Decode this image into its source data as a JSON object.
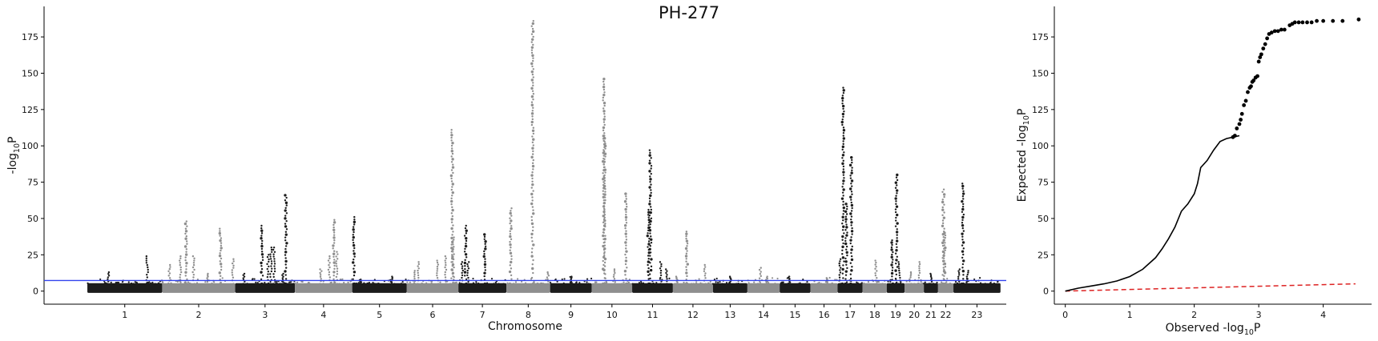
{
  "figure": {
    "title": "PH-277"
  },
  "chart_data": [
    {
      "type": "scatter",
      "name": "manhattan",
      "title": "PH-277",
      "xlabel": "Chromosome",
      "ylabel_main": "-log",
      "ylabel_sub": "10",
      "ylabel_tail": "P",
      "ylim": [
        -9,
        196
      ],
      "yticks": [
        0,
        25,
        50,
        75,
        100,
        125,
        150,
        175
      ],
      "threshold": 7.3,
      "threshold_color": "#3344ee",
      "colors": {
        "odd": "#1c1c1c",
        "even": "#8f8f8f"
      },
      "chromosomes": [
        {
          "label": "1",
          "length": 248,
          "top": 24
        },
        {
          "label": "2",
          "length": 242,
          "top": 47
        },
        {
          "label": "3",
          "length": 198,
          "top": 66
        },
        {
          "label": "4",
          "length": 190,
          "top": 49
        },
        {
          "label": "5",
          "length": 181,
          "top": 51
        },
        {
          "label": "6",
          "length": 171,
          "top": 111
        },
        {
          "label": "7",
          "length": 159,
          "top": 45
        },
        {
          "label": "8",
          "length": 145,
          "top": 186
        },
        {
          "label": "9",
          "length": 138,
          "top": 13
        },
        {
          "label": "10",
          "length": 134,
          "top": 146
        },
        {
          "label": "11",
          "length": 135,
          "top": 97
        },
        {
          "label": "12",
          "length": 133,
          "top": 41
        },
        {
          "label": "13",
          "length": 114,
          "top": 10
        },
        {
          "label": "14",
          "length": 107,
          "top": 16
        },
        {
          "label": "15",
          "length": 102,
          "top": 10
        },
        {
          "label": "16",
          "length": 90,
          "top": 9
        },
        {
          "label": "17",
          "length": 83,
          "top": 140
        },
        {
          "label": "18",
          "length": 80,
          "top": 21
        },
        {
          "label": "19",
          "length": 59,
          "top": 80
        },
        {
          "label": "20",
          "length": 64,
          "top": 20
        },
        {
          "label": "21",
          "length": 47,
          "top": 12
        },
        {
          "label": "22",
          "length": 51,
          "top": 70
        },
        {
          "label": "23",
          "length": 156,
          "top": 74
        }
      ],
      "peaks": [
        {
          "chr": "1",
          "pos": 0.28,
          "top": 13
        },
        {
          "chr": "1",
          "pos": 0.8,
          "top": 24
        },
        {
          "chr": "2",
          "pos": 0.1,
          "top": 18
        },
        {
          "chr": "2",
          "pos": 0.25,
          "top": 24
        },
        {
          "chr": "2",
          "pos": 0.33,
          "top": 48
        },
        {
          "chr": "2",
          "pos": 0.43,
          "top": 24
        },
        {
          "chr": "2",
          "pos": 0.62,
          "top": 12
        },
        {
          "chr": "2",
          "pos": 0.8,
          "top": 43
        },
        {
          "chr": "2",
          "pos": 0.97,
          "top": 22
        },
        {
          "chr": "3",
          "pos": 0.15,
          "top": 12
        },
        {
          "chr": "3",
          "pos": 0.45,
          "top": 45
        },
        {
          "chr": "3",
          "pos": 0.55,
          "top": 25
        },
        {
          "chr": "3",
          "pos": 0.6,
          "top": 30
        },
        {
          "chr": "3",
          "pos": 0.65,
          "top": 30
        },
        {
          "chr": "3",
          "pos": 0.8,
          "top": 12
        },
        {
          "chr": "3",
          "pos": 0.85,
          "top": 66
        },
        {
          "chr": "4",
          "pos": 0.45,
          "top": 15
        },
        {
          "chr": "4",
          "pos": 0.6,
          "top": 24
        },
        {
          "chr": "4",
          "pos": 0.68,
          "top": 49
        },
        {
          "chr": "4",
          "pos": 0.73,
          "top": 27
        },
        {
          "chr": "5",
          "pos": 0.03,
          "top": 51
        },
        {
          "chr": "5",
          "pos": 0.15,
          "top": 8
        },
        {
          "chr": "5",
          "pos": 0.72,
          "top": 10
        },
        {
          "chr": "6",
          "pos": 0.15,
          "top": 14
        },
        {
          "chr": "6",
          "pos": 0.22,
          "top": 20
        },
        {
          "chr": "6",
          "pos": 0.6,
          "top": 21
        },
        {
          "chr": "6",
          "pos": 0.75,
          "top": 24
        },
        {
          "chr": "6",
          "pos": 0.88,
          "top": 111
        },
        {
          "chr": "6",
          "pos": 0.9,
          "top": 37
        },
        {
          "chr": "7",
          "pos": 0.08,
          "top": 20
        },
        {
          "chr": "7",
          "pos": 0.15,
          "top": 45
        },
        {
          "chr": "7",
          "pos": 0.2,
          "top": 20
        },
        {
          "chr": "7",
          "pos": 0.55,
          "top": 39
        },
        {
          "chr": "8",
          "pos": 0.1,
          "top": 57
        },
        {
          "chr": "8",
          "pos": 0.6,
          "top": 186
        },
        {
          "chr": "8",
          "pos": 0.95,
          "top": 13
        },
        {
          "chr": "9",
          "pos": 0.5,
          "top": 10
        },
        {
          "chr": "10",
          "pos": 0.3,
          "top": 146
        },
        {
          "chr": "10",
          "pos": 0.32,
          "top": 107
        },
        {
          "chr": "10",
          "pos": 0.55,
          "top": 15
        },
        {
          "chr": "10",
          "pos": 0.85,
          "top": 67
        },
        {
          "chr": "11",
          "pos": 0.45,
          "top": 97
        },
        {
          "chr": "11",
          "pos": 0.4,
          "top": 56
        },
        {
          "chr": "11",
          "pos": 0.7,
          "top": 20
        },
        {
          "chr": "11",
          "pos": 0.85,
          "top": 15
        },
        {
          "chr": "12",
          "pos": 0.1,
          "top": 10
        },
        {
          "chr": "12",
          "pos": 0.35,
          "top": 41
        },
        {
          "chr": "12",
          "pos": 0.8,
          "top": 18
        },
        {
          "chr": "13",
          "pos": 0.5,
          "top": 10
        },
        {
          "chr": "14",
          "pos": 0.4,
          "top": 16
        },
        {
          "chr": "14",
          "pos": 0.6,
          "top": 10
        },
        {
          "chr": "15",
          "pos": 0.3,
          "top": 10
        },
        {
          "chr": "16",
          "pos": 0.6,
          "top": 9
        },
        {
          "chr": "17",
          "pos": 0.1,
          "top": 22
        },
        {
          "chr": "17",
          "pos": 0.22,
          "top": 140
        },
        {
          "chr": "17",
          "pos": 0.35,
          "top": 60
        },
        {
          "chr": "17",
          "pos": 0.55,
          "top": 92
        },
        {
          "chr": "18",
          "pos": 0.55,
          "top": 21
        },
        {
          "chr": "19",
          "pos": 0.3,
          "top": 35
        },
        {
          "chr": "19",
          "pos": 0.55,
          "top": 80
        },
        {
          "chr": "19",
          "pos": 0.7,
          "top": 20
        },
        {
          "chr": "20",
          "pos": 0.3,
          "top": 13
        },
        {
          "chr": "20",
          "pos": 0.75,
          "top": 20
        },
        {
          "chr": "21",
          "pos": 0.5,
          "top": 12
        },
        {
          "chr": "22",
          "pos": 0.35,
          "top": 70
        },
        {
          "chr": "22",
          "pos": 0.42,
          "top": 40
        },
        {
          "chr": "23",
          "pos": 0.12,
          "top": 15
        },
        {
          "chr": "23",
          "pos": 0.2,
          "top": 74
        },
        {
          "chr": "23",
          "pos": 0.3,
          "top": 14
        }
      ]
    },
    {
      "type": "scatter",
      "name": "qq",
      "xlabel_main": "Observed -log",
      "xlabel_sub": "10",
      "xlabel_tail": "P",
      "ylabel_main": "Expected -log",
      "ylabel_sub": "10",
      "ylabel_tail": "P",
      "xlim": [
        -0.17,
        4.75
      ],
      "ylim": [
        -9,
        196
      ],
      "xticks": [
        0,
        1,
        2,
        3,
        4
      ],
      "yticks": [
        0,
        25,
        50,
        75,
        100,
        125,
        150,
        175
      ],
      "reference_color": "#dd2222",
      "reference_line": {
        "x": [
          0,
          4.5
        ],
        "y": [
          0,
          5
        ]
      },
      "curve": {
        "x": [
          0,
          0.2,
          0.4,
          0.6,
          0.8,
          1.0,
          1.2,
          1.4,
          1.5,
          1.6,
          1.7,
          1.8,
          1.9,
          2.0,
          2.05,
          2.1,
          2.2,
          2.3,
          2.4,
          2.5,
          2.6,
          2.7
        ],
        "y": [
          0,
          2,
          3.5,
          5,
          7,
          10,
          15,
          23,
          29,
          36,
          44,
          55,
          60,
          67,
          74,
          85,
          90,
          97,
          103,
          105,
          106,
          107
        ]
      },
      "points": {
        "x": [
          2.6,
          2.63,
          2.66,
          2.7,
          2.72,
          2.74,
          2.77,
          2.8,
          2.83,
          2.86,
          2.88,
          2.9,
          2.92,
          2.95,
          2.98,
          3.0,
          3.02,
          3.04,
          3.07,
          3.1,
          3.13,
          3.16,
          3.2,
          3.25,
          3.3,
          3.35,
          3.4,
          3.48,
          3.52,
          3.56,
          3.62,
          3.68,
          3.75,
          3.82,
          3.9,
          4.0,
          4.15,
          4.3,
          4.55
        ],
        "y": [
          106,
          107,
          112,
          115,
          118,
          122,
          128,
          131,
          137,
          140,
          141,
          144,
          145,
          147,
          148,
          158,
          161,
          163,
          167,
          170,
          174,
          177,
          178,
          179,
          179,
          180,
          180,
          183,
          184,
          185,
          185,
          185,
          185,
          185,
          186,
          186,
          186,
          186,
          187
        ]
      }
    }
  ]
}
